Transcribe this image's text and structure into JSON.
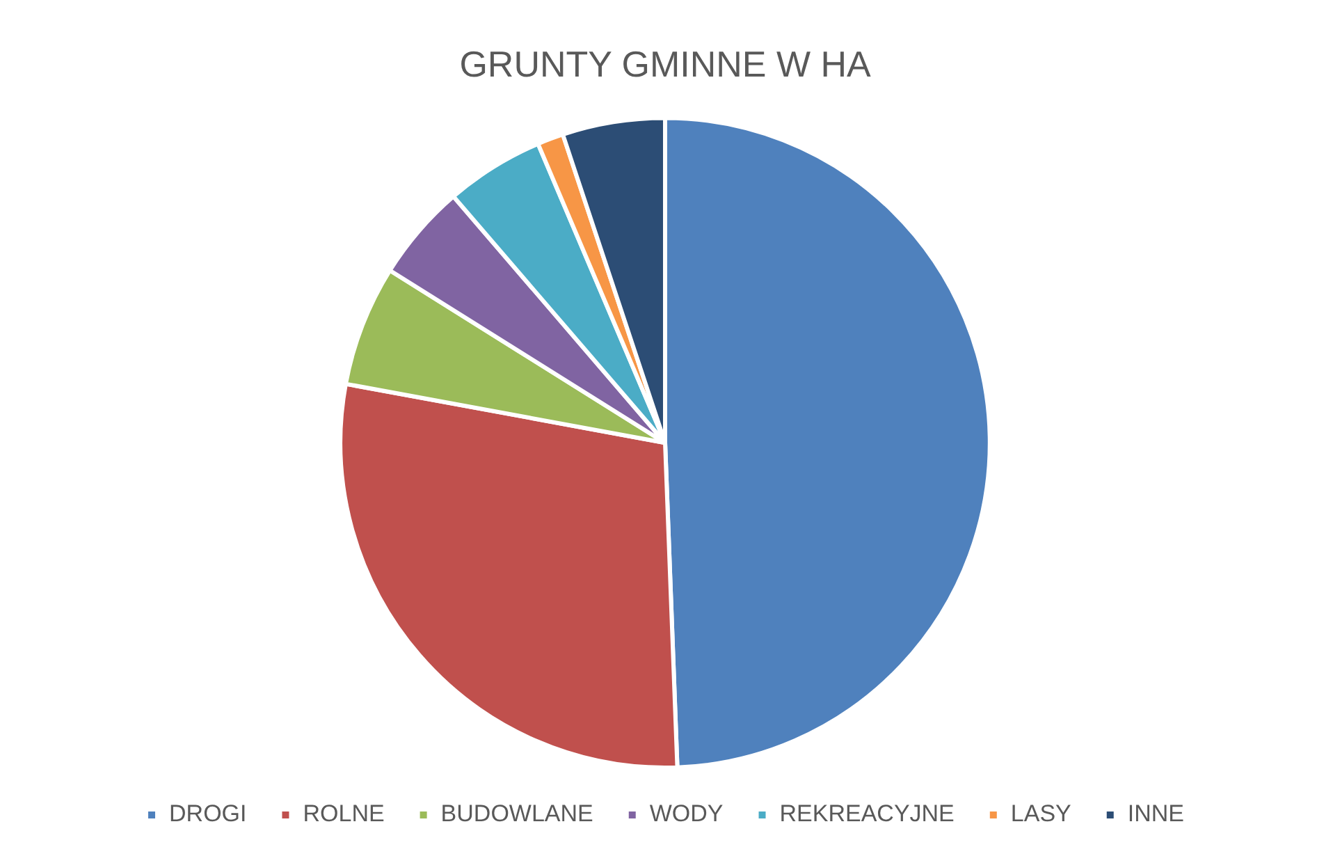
{
  "chart_data": {
    "type": "pie",
    "title": "GRUNTY GMINNE W HA",
    "categories": [
      "DROGI",
      "ROLNE",
      "BUDOWLANE",
      "WODY",
      "REKREACYJNE",
      "LASY",
      "INNE"
    ],
    "values": [
      49.4,
      28.5,
      6,
      4.8,
      4.9,
      1.3,
      5.1
    ],
    "colors": [
      "#4f81bd",
      "#c0504d",
      "#9bbb59",
      "#8064a2",
      "#4bacc6",
      "#f79646",
      "#2c4d75"
    ],
    "legend": "bottom"
  }
}
